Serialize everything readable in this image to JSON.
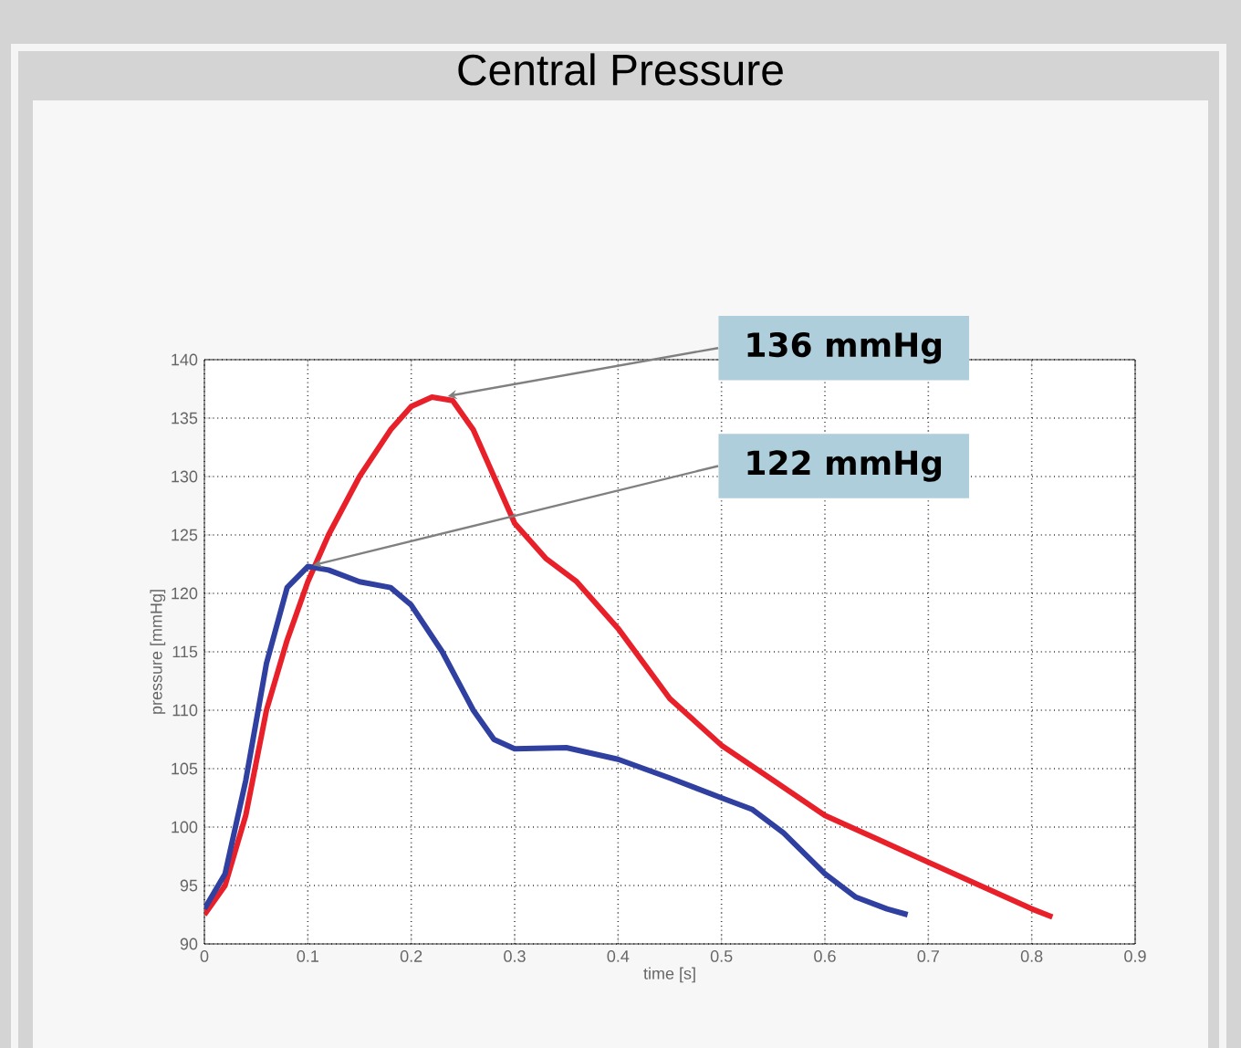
{
  "chart_data": {
    "type": "line",
    "title": "Central Pressure",
    "xlabel": "time [s]",
    "ylabel": "pressure [mmHg]",
    "xlim": [
      0,
      0.9
    ],
    "ylim": [
      90,
      140
    ],
    "xticks": [
      0,
      0.1,
      0.2,
      0.3,
      0.4,
      0.5,
      0.6,
      0.7,
      0.8,
      0.9
    ],
    "yticks": [
      90,
      95,
      100,
      105,
      110,
      115,
      120,
      125,
      130,
      135,
      140
    ],
    "grid": true,
    "line_style": "solid",
    "marker": "none",
    "series": [
      {
        "color": "#e8202a",
        "x": [
          0,
          0.02,
          0.04,
          0.06,
          0.08,
          0.1,
          0.12,
          0.15,
          0.18,
          0.2,
          0.22,
          0.24,
          0.26,
          0.28,
          0.3,
          0.33,
          0.36,
          0.4,
          0.45,
          0.5,
          0.55,
          0.6,
          0.65,
          0.7,
          0.75,
          0.8,
          0.82
        ],
        "values": [
          92.5,
          95,
          101,
          110,
          116,
          121,
          125,
          130,
          134,
          136,
          136.8,
          136.5,
          134,
          130,
          126,
          123,
          121,
          117,
          111,
          107,
          104,
          101,
          99,
          97,
          95,
          93,
          92.3
        ]
      },
      {
        "color": "#3040a0",
        "x": [
          0,
          0.02,
          0.04,
          0.06,
          0.08,
          0.1,
          0.12,
          0.15,
          0.18,
          0.2,
          0.23,
          0.26,
          0.28,
          0.3,
          0.35,
          0.4,
          0.45,
          0.5,
          0.53,
          0.56,
          0.6,
          0.63,
          0.66,
          0.68
        ],
        "values": [
          93,
          96,
          104,
          114,
          120.5,
          122.3,
          122,
          121,
          120.5,
          119,
          115,
          110,
          107.5,
          106.7,
          106.8,
          105.8,
          104.2,
          102.5,
          101.5,
          99.5,
          96,
          94,
          93,
          92.5
        ]
      }
    ],
    "annotations": [
      {
        "text": "136 mmHg",
        "x": 0.23,
        "y": 136.8
      },
      {
        "text": "122 mmHg",
        "x": 0.1,
        "y": 122.3
      }
    ]
  }
}
